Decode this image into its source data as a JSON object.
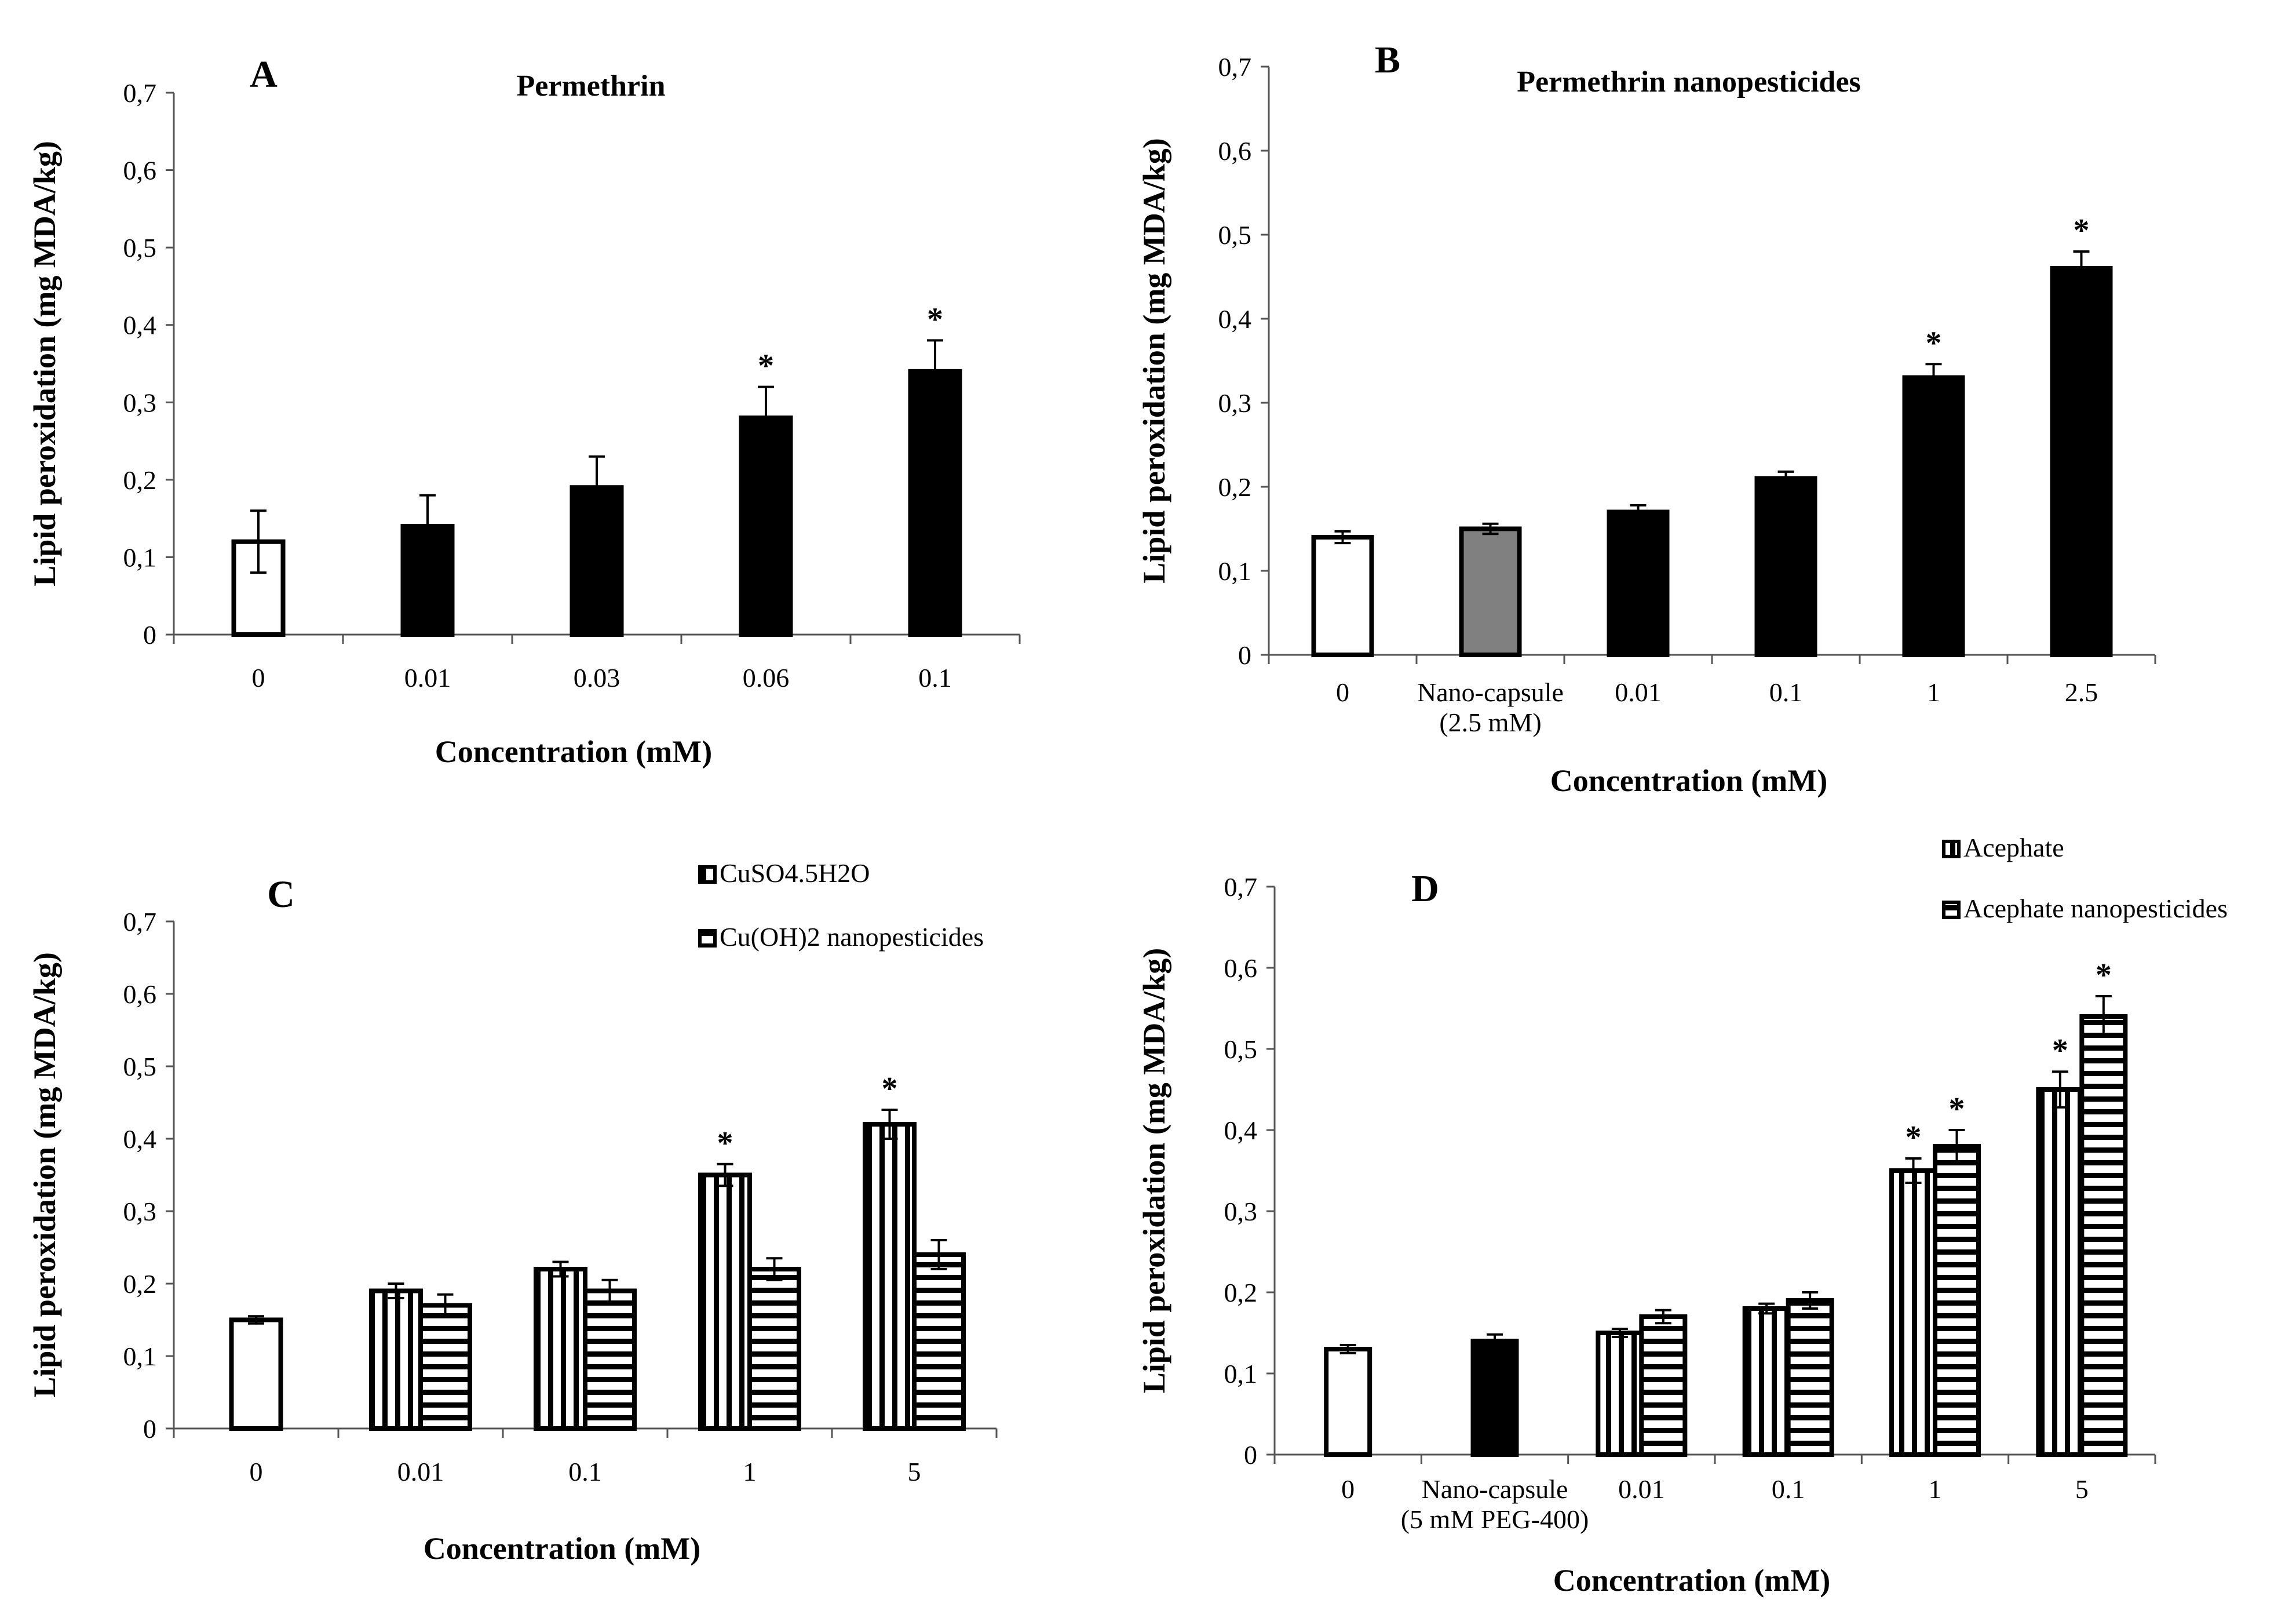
{
  "chart_data": [
    {
      "panel": "A",
      "title": "Permethrin",
      "type": "bar",
      "xlabel": "Concentration (mM)",
      "ylabel": "Lipid peroxidation (mg MDA/kg)",
      "ylim": [
        0,
        0.7
      ],
      "yticks": [
        "0",
        "0,1",
        "0,2",
        "0,3",
        "0,4",
        "0,5",
        "0,6",
        "0,7"
      ],
      "categories": [
        [
          "0"
        ],
        [
          "0.01"
        ],
        [
          "0.03"
        ],
        [
          "0.06"
        ],
        [
          "0.1"
        ]
      ],
      "series": [
        {
          "name": "Permethrin",
          "values": [
            0.12,
            0.14,
            0.19,
            0.28,
            0.34
          ],
          "errors": [
            0.04,
            0.04,
            0.04,
            0.04,
            0.04
          ],
          "fills": [
            "white",
            "black",
            "black",
            "black",
            "black"
          ],
          "stars": [
            false,
            false,
            false,
            true,
            true
          ]
        }
      ]
    },
    {
      "panel": "B",
      "title": "Permethrin nanopesticides",
      "type": "bar",
      "xlabel": "Concentration (mM)",
      "ylabel": "Lipid peroxidation (mg MDA/kg)",
      "ylim": [
        0,
        0.7
      ],
      "yticks": [
        "0",
        "0,1",
        "0,2",
        "0,3",
        "0,4",
        "0,5",
        "0,6",
        "0,7"
      ],
      "categories": [
        [
          "0"
        ],
        [
          "Nano-capsule",
          "(2.5 mM)"
        ],
        [
          "0.01"
        ],
        [
          "0.1"
        ],
        [
          "1"
        ],
        [
          "2.5"
        ]
      ],
      "series": [
        {
          "name": "Permethrin nanopesticides",
          "values": [
            0.14,
            0.15,
            0.17,
            0.21,
            0.33,
            0.46
          ],
          "errors": [
            0.007,
            0.006,
            0.008,
            0.008,
            0.016,
            0.02
          ],
          "fills": [
            "white",
            "gray",
            "black",
            "black",
            "black",
            "black"
          ],
          "stars": [
            false,
            false,
            false,
            false,
            true,
            true
          ]
        }
      ]
    },
    {
      "panel": "C",
      "title": "",
      "type": "bar",
      "xlabel": "Concentration (mM)",
      "ylabel": "Lipid peroxidation (mg MDA/kg)",
      "ylim": [
        0,
        0.7
      ],
      "yticks": [
        "0",
        "0,1",
        "0,2",
        "0,3",
        "0,4",
        "0,5",
        "0,6",
        "0,7"
      ],
      "categories": [
        [
          "0"
        ],
        [
          "0.01"
        ],
        [
          "0.1"
        ],
        [
          "1"
        ],
        [
          "5"
        ]
      ],
      "legend": [
        "CuSO4.5H2O",
        "Cu(OH)2 nanopesticides"
      ],
      "series": [
        {
          "name": "CuSO4.5H2O",
          "pattern": "vertical",
          "values": [
            0.15,
            0.19,
            0.22,
            0.35,
            0.42
          ],
          "errors": [
            0.005,
            0.01,
            0.01,
            0.015,
            0.02
          ],
          "first_fill": "white",
          "stars": [
            false,
            false,
            false,
            true,
            true
          ]
        },
        {
          "name": "Cu(OH)2 nanopesticides",
          "pattern": "horizontal",
          "values": [
            null,
            0.17,
            0.19,
            0.22,
            0.24
          ],
          "errors": [
            null,
            0.015,
            0.015,
            0.015,
            0.02
          ],
          "stars": [
            false,
            false,
            false,
            false,
            false
          ]
        }
      ]
    },
    {
      "panel": "D",
      "title": "",
      "type": "bar",
      "xlabel": "Concentration (mM)",
      "ylabel": "Lipid peroxidation (mg MDA/kg)",
      "ylim": [
        0,
        0.7
      ],
      "yticks": [
        "0",
        "0,1",
        "0,2",
        "0,3",
        "0,4",
        "0,5",
        "0,6",
        "0,7"
      ],
      "categories": [
        [
          "0"
        ],
        [
          "Nano-capsule",
          "(5 mM PEG-400)"
        ],
        [
          "0.01"
        ],
        [
          "0.1"
        ],
        [
          "1"
        ],
        [
          "5"
        ]
      ],
      "legend": [
        "Acephate",
        "Acephate nanopesticides"
      ],
      "singles": [
        {
          "index": 0,
          "value": 0.13,
          "error": 0.005,
          "fill": "white"
        },
        {
          "index": 1,
          "value": 0.14,
          "error": 0.008,
          "fill": "black"
        }
      ],
      "series": [
        {
          "name": "Acephate",
          "pattern": "vertical",
          "values": [
            null,
            null,
            0.15,
            0.18,
            0.35,
            0.45
          ],
          "errors": [
            null,
            null,
            0.005,
            0.006,
            0.015,
            0.022
          ],
          "stars": [
            false,
            false,
            false,
            false,
            true,
            true
          ]
        },
        {
          "name": "Acephate nanopesticides",
          "pattern": "horizontal",
          "values": [
            null,
            null,
            0.17,
            0.19,
            0.38,
            0.54
          ],
          "errors": [
            null,
            null,
            0.008,
            0.01,
            0.02,
            0.025
          ],
          "stars": [
            false,
            false,
            false,
            false,
            true,
            true
          ]
        }
      ]
    }
  ]
}
